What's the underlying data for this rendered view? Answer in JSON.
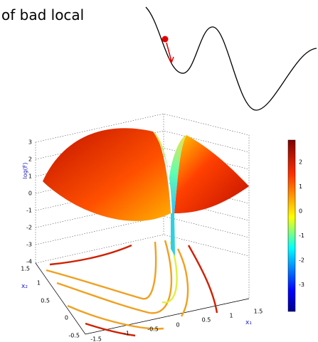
{
  "caption_fragment": "of bad local",
  "plot": {
    "z_label": "log(F)",
    "x1_label": "x₁",
    "x2_label": "x₂",
    "z_ticks": [
      "3",
      "2",
      "1",
      "0",
      "-1",
      "-2",
      "-3",
      "-4"
    ],
    "x2_ticks": [
      "1.5",
      "1",
      "0.5",
      "0",
      "-0.5"
    ],
    "x1_ticks": [
      "-1.5",
      "-1",
      "-0.5",
      "0",
      "0.5",
      "1",
      "1.5"
    ]
  },
  "colorbar": {
    "ticks": [
      "2",
      "1",
      "0",
      "-1",
      "-2",
      "-3"
    ]
  }
}
